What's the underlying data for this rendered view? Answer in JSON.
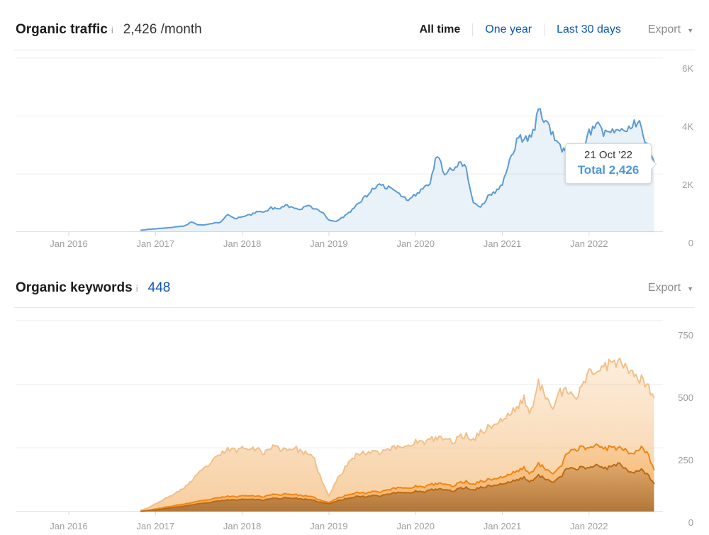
{
  "icons": {
    "info": "i",
    "caret_down": "▼"
  },
  "traffic_header": {
    "title": "Organic traffic",
    "metric": "2,426 /month",
    "tabs": [
      {
        "label": "All time",
        "active": true
      },
      {
        "label": "One year",
        "active": false
      },
      {
        "label": "Last 30 days",
        "active": false
      }
    ],
    "export_label": "Export"
  },
  "keywords_header": {
    "title": "Organic keywords",
    "count": "448",
    "export_label": "Export"
  },
  "tooltip": {
    "date": "21 Oct '22",
    "total": "Total 2,426"
  },
  "colors": {
    "link_blue": "#0d57b5",
    "tooltip_blue": "#5096d6",
    "traffic_line": "#5b9bd5",
    "keywords_light_line": "#f1c08a",
    "keywords_mid_line": "#ee8614",
    "keywords_dark_line": "#b96a14",
    "axis_text": "#9d9d9d"
  },
  "chart_data": [
    {
      "type": "area",
      "title": "Organic traffic",
      "x_start": "2016-11",
      "x_interval": "monthly",
      "x_tick_labels": [
        "Jan 2016",
        "Jan 2017",
        "Jan 2018",
        "Jan 2019",
        "Jan 2020",
        "Jan 2021",
        "Jan 2022"
      ],
      "y_tick_labels": [
        "6K",
        "4K",
        "2K",
        "0"
      ],
      "y_gridlines": [
        2000,
        4000,
        6000
      ],
      "ylim": [
        0,
        6000
      ],
      "legend": "none",
      "annotation": {
        "date": "21 Oct '22",
        "total": 2426
      },
      "series": [
        {
          "name": "Organic traffic",
          "line_color": "#5b9bd5",
          "fill": "rgba(96,152,212,0.13)",
          "values": [
            60,
            90,
            110,
            130,
            150,
            180,
            210,
            350,
            240,
            260,
            300,
            340,
            600,
            460,
            520,
            580,
            700,
            660,
            830,
            780,
            920,
            850,
            780,
            900,
            820,
            700,
            420,
            380,
            520,
            700,
            950,
            1200,
            1450,
            1620,
            1560,
            1400,
            1250,
            1100,
            1300,
            1500,
            1700,
            2700,
            2050,
            2150,
            2350,
            2200,
            1000,
            850,
            1200,
            1400,
            1650,
            2400,
            3100,
            3300,
            3200,
            4150,
            3900,
            3300,
            2950,
            2700,
            2450,
            2700,
            3450,
            3700,
            3350,
            3600,
            3400,
            3550,
            3650,
            3880,
            3000,
            2426
          ]
        }
      ]
    },
    {
      "type": "area",
      "title": "Organic keywords",
      "x_start": "2016-11",
      "x_interval": "monthly",
      "x_tick_labels": [
        "Jan 2016",
        "Jan 2017",
        "Jan 2018",
        "Jan 2019",
        "Jan 2020",
        "Jan 2021",
        "Jan 2022"
      ],
      "y_tick_labels": [
        "750",
        "500",
        "250",
        "0"
      ],
      "y_gridlines": [
        250,
        500,
        750
      ],
      "ylim": [
        0,
        770
      ],
      "legend": "none",
      "series": [
        {
          "name": "Keywords total (light)",
          "line_color": "#f1c08a",
          "fill_top": "rgba(243,176,96,0.22)",
          "fill_bottom": "rgba(240,165,80,0.55)",
          "values": [
            5,
            15,
            30,
            45,
            60,
            75,
            95,
            120,
            150,
            175,
            200,
            225,
            245,
            240,
            250,
            255,
            245,
            230,
            255,
            250,
            245,
            250,
            240,
            225,
            205,
            120,
            60,
            120,
            160,
            210,
            225,
            230,
            240,
            235,
            245,
            250,
            255,
            260,
            275,
            270,
            280,
            290,
            285,
            275,
            290,
            300,
            285,
            310,
            330,
            345,
            360,
            380,
            410,
            440,
            390,
            500,
            460,
            420,
            465,
            470,
            440,
            490,
            560,
            545,
            555,
            600,
            590,
            575,
            560,
            520,
            500,
            448
          ]
        },
        {
          "name": "Keywords (orange)",
          "line_color": "#ee8614",
          "fill_top": "rgba(243,140,24,0.18)",
          "fill_bottom": "rgba(242,138,20,0.42)",
          "values": [
            2,
            5,
            10,
            15,
            20,
            25,
            30,
            35,
            40,
            45,
            50,
            55,
            60,
            58,
            62,
            65,
            60,
            58,
            68,
            65,
            70,
            68,
            64,
            60,
            55,
            42,
            35,
            50,
            60,
            70,
            75,
            72,
            80,
            78,
            85,
            90,
            95,
            92,
            100,
            95,
            105,
            110,
            108,
            100,
            112,
            118,
            108,
            118,
            125,
            130,
            135,
            145,
            160,
            170,
            150,
            185,
            170,
            155,
            170,
            230,
            240,
            255,
            250,
            265,
            240,
            260,
            250,
            245,
            230,
            250,
            235,
            165
          ]
        },
        {
          "name": "Keywords (dark orange)",
          "line_color": "#b96a14",
          "fill_top": "rgba(158,95,32,0.28)",
          "fill_bottom": "rgba(120,70,22,0.55)",
          "values": [
            1,
            3,
            6,
            10,
            14,
            18,
            22,
            26,
            30,
            34,
            38,
            42,
            46,
            45,
            48,
            50,
            47,
            45,
            52,
            50,
            55,
            53,
            50,
            47,
            43,
            35,
            30,
            40,
            48,
            55,
            60,
            58,
            64,
            62,
            68,
            72,
            76,
            74,
            80,
            76,
            84,
            88,
            86,
            80,
            90,
            94,
            86,
            94,
            100,
            104,
            108,
            115,
            125,
            132,
            118,
            140,
            130,
            120,
            132,
            170,
            165,
            175,
            172,
            185,
            165,
            180,
            190,
            170,
            155,
            165,
            150,
            110
          ]
        }
      ]
    }
  ]
}
